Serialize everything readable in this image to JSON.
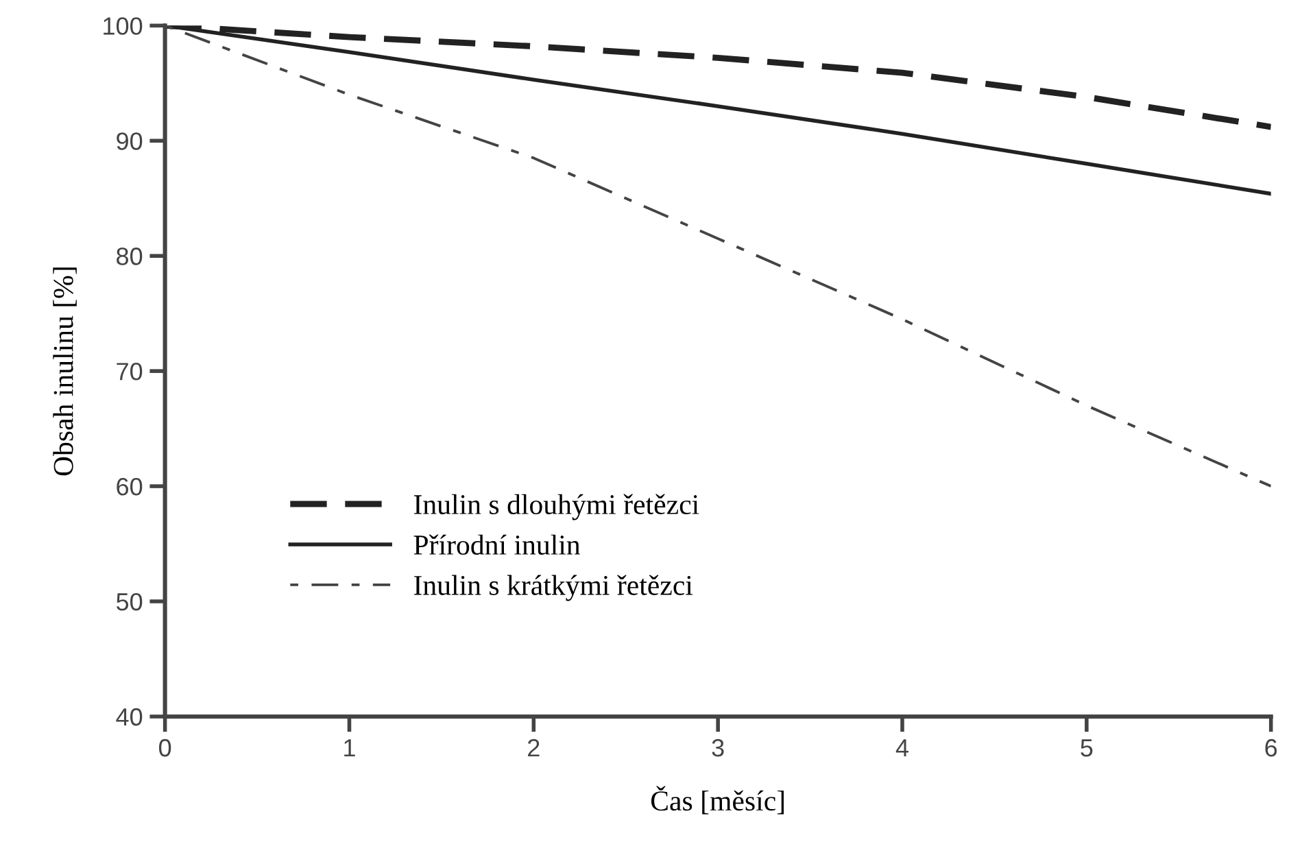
{
  "chart_data": {
    "type": "line",
    "xlabel": "Čas [měsíc]",
    "ylabel": "Obsah inulinu [%]",
    "x": [
      0,
      1,
      2,
      3,
      4,
      5,
      6
    ],
    "series": [
      {
        "name": "Inulin s dlouhými řetězci",
        "color": "#222222",
        "line_style": "dashed",
        "values": [
          100,
          99,
          98.2,
          97.2,
          95.9,
          93.8,
          91.2
        ]
      },
      {
        "name": "Přírodní inulin",
        "color": "#222222",
        "line_style": "solid",
        "values": [
          100,
          97.7,
          95.3,
          93,
          90.6,
          88,
          85.4
        ]
      },
      {
        "name": "Inulin s krátkými řetězci",
        "color": "#444444",
        "line_style": "dashdot",
        "values": [
          100,
          94,
          88.5,
          81.5,
          74.5,
          67,
          60
        ]
      }
    ],
    "xlim": [
      0,
      6
    ],
    "xticks": [
      0,
      1,
      2,
      3,
      4,
      5,
      6
    ],
    "ylim": [
      40,
      100
    ],
    "yticks": [
      40,
      50,
      60,
      70,
      80,
      90,
      100
    ],
    "grid": false,
    "legend": "bottom left",
    "marker": "none"
  }
}
